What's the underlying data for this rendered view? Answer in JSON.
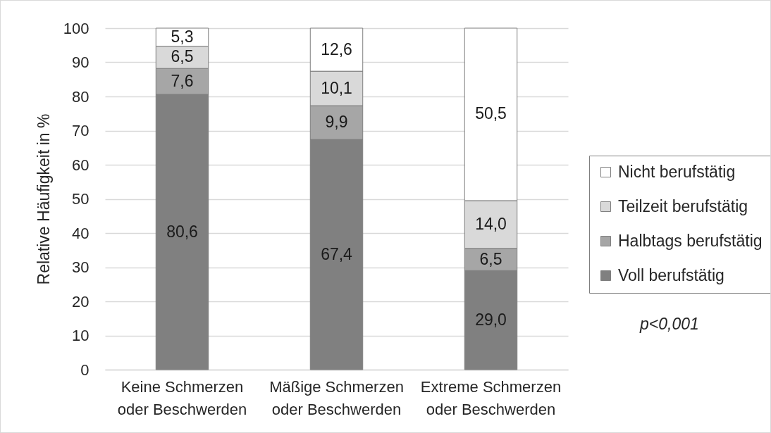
{
  "chart_data": {
    "type": "bar",
    "stacked": true,
    "ylabel": "Relative Häufigkeit in %",
    "categories": [
      "Keine Schmerzen\noder Beschwerden",
      "Mäßige Schmerzen\noder Beschwerden",
      "Extreme Schmerzen\noder Beschwerden"
    ],
    "series": [
      {
        "name": "Voll berufstätig",
        "color": "#808080",
        "values": [
          80.6,
          67.4,
          29.0
        ],
        "value_labels": [
          "80,6",
          "67,4",
          "29,0"
        ]
      },
      {
        "name": "Halbtags berufstätig",
        "color": "#a6a6a6",
        "values": [
          7.6,
          9.9,
          6.5
        ],
        "value_labels": [
          "7,6",
          "9,9",
          "6,5"
        ]
      },
      {
        "name": "Teilzeit berufstätig",
        "color": "#d9d9d9",
        "values": [
          6.5,
          10.1,
          14.0
        ],
        "value_labels": [
          "6,5",
          "10,1",
          "14,0"
        ]
      },
      {
        "name": "Nicht berufstätig",
        "color": "#ffffff",
        "values": [
          5.3,
          12.6,
          50.5
        ],
        "value_labels": [
          "5,3",
          "12,6",
          "50,5"
        ]
      }
    ],
    "ylim": [
      0,
      100
    ],
    "yticks": [
      0,
      10,
      20,
      30,
      40,
      50,
      60,
      70,
      80,
      90,
      100
    ],
    "grid": "y",
    "legend": "right",
    "annotations": [
      "p<0,001"
    ]
  }
}
